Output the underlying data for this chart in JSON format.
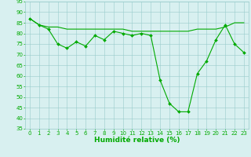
{
  "x": [
    0,
    1,
    2,
    3,
    4,
    5,
    6,
    7,
    8,
    9,
    10,
    11,
    12,
    13,
    14,
    15,
    16,
    17,
    18,
    19,
    20,
    21,
    22,
    23
  ],
  "y_main": [
    87,
    84,
    82,
    75,
    73,
    76,
    74,
    79,
    77,
    81,
    80,
    79,
    80,
    79,
    58,
    47,
    43,
    43,
    61,
    67,
    77,
    84,
    75,
    71
  ],
  "y_smooth": [
    87,
    84,
    83,
    83,
    82,
    82,
    82,
    82,
    82,
    82,
    82,
    81,
    81,
    81,
    81,
    81,
    81,
    81,
    82,
    82,
    82,
    83,
    85,
    85
  ],
  "line_color": "#00aa00",
  "marker": "D",
  "markersize": 2.0,
  "linewidth": 0.8,
  "bg_color": "#d8f0f0",
  "grid_color": "#99cccc",
  "xlabel": "Humidité relative (%)",
  "xlabel_color": "#00aa00",
  "ylim": [
    35,
    95
  ],
  "xlim": [
    -0.5,
    23.5
  ],
  "yticks": [
    35,
    40,
    45,
    50,
    55,
    60,
    65,
    70,
    75,
    80,
    85,
    90,
    95
  ],
  "xticks": [
    0,
    1,
    2,
    3,
    4,
    5,
    6,
    7,
    8,
    9,
    10,
    11,
    12,
    13,
    14,
    15,
    16,
    17,
    18,
    19,
    20,
    21,
    22,
    23
  ],
  "tick_color": "#00aa00",
  "tick_fontsize": 5.0,
  "xlabel_fontsize": 6.5
}
